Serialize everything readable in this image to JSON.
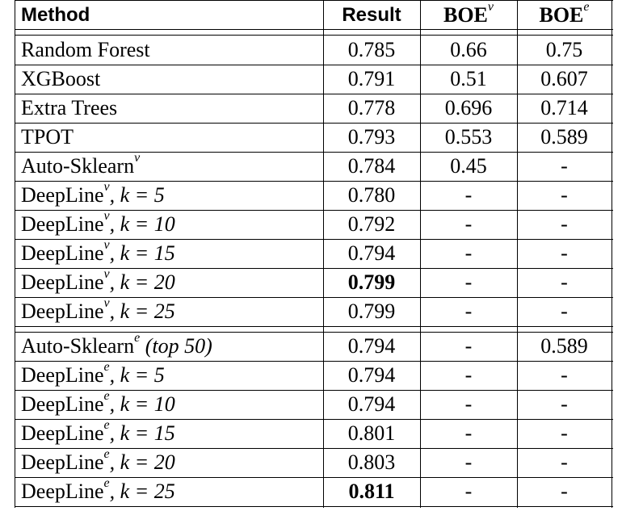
{
  "table": {
    "header": [
      {
        "text": "Method"
      },
      {
        "text": "Result"
      },
      {
        "text": "BOE",
        "sup": "v"
      },
      {
        "text": "BOE",
        "sup": "e"
      }
    ],
    "groups": [
      [
        {
          "method": {
            "name": "Random Forest"
          },
          "result": "0.785",
          "boe_v": "0.66",
          "boe_e": "0.75"
        },
        {
          "method": {
            "name": "XGBoost"
          },
          "result": "0.791",
          "boe_v": "0.51",
          "boe_e": "0.607"
        },
        {
          "method": {
            "name": "Extra Trees"
          },
          "result": "0.778",
          "boe_v": "0.696",
          "boe_e": "0.714"
        },
        {
          "method": {
            "name": "TPOT"
          },
          "result": "0.793",
          "boe_v": "0.553",
          "boe_e": "0.589"
        },
        {
          "method": {
            "name": "Auto-Sklearn",
            "sup": "v"
          },
          "result": "0.784",
          "boe_v": "0.45",
          "boe_e": "-"
        },
        {
          "method": {
            "name": "DeepLine",
            "sup": "v",
            "param": ", k = 5"
          },
          "result": "0.780",
          "boe_v": "-",
          "boe_e": "-"
        },
        {
          "method": {
            "name": "DeepLine",
            "sup": "v",
            "param": ", k = 10"
          },
          "result": "0.792",
          "boe_v": "-",
          "boe_e": "-"
        },
        {
          "method": {
            "name": "DeepLine",
            "sup": "v",
            "param": ", k = 15"
          },
          "result": "0.794",
          "boe_v": "-",
          "boe_e": "-"
        },
        {
          "method": {
            "name": "DeepLine",
            "sup": "v",
            "param": ", k = 20"
          },
          "result": "0.799",
          "boe_v": "-",
          "boe_e": "-",
          "bold": true
        },
        {
          "method": {
            "name": "DeepLine",
            "sup": "v",
            "param": ", k = 25"
          },
          "result": "0.799",
          "boe_v": "-",
          "boe_e": "-"
        }
      ],
      [
        {
          "method": {
            "name": "Auto-Sklearn",
            "sup": "e",
            "param": " (top 50)"
          },
          "result": "0.794",
          "boe_v": "-",
          "boe_e": "0.589"
        },
        {
          "method": {
            "name": "DeepLine",
            "sup": "e",
            "param": ", k = 5"
          },
          "result": "0.794",
          "boe_v": "-",
          "boe_e": "-"
        },
        {
          "method": {
            "name": "DeepLine",
            "sup": "e",
            "param": ", k = 10"
          },
          "result": "0.794",
          "boe_v": "-",
          "boe_e": "-"
        },
        {
          "method": {
            "name": "DeepLine",
            "sup": "e",
            "param": ", k = 15"
          },
          "result": "0.801",
          "boe_v": "-",
          "boe_e": "-"
        },
        {
          "method": {
            "name": "DeepLine",
            "sup": "e",
            "param": ", k = 20"
          },
          "result": "0.803",
          "boe_v": "-",
          "boe_e": "-"
        },
        {
          "method": {
            "name": "DeepLine",
            "sup": "e",
            "param": ", k = 25"
          },
          "result": "0.811",
          "boe_v": "-",
          "boe_e": "-",
          "bold": true
        }
      ]
    ]
  }
}
